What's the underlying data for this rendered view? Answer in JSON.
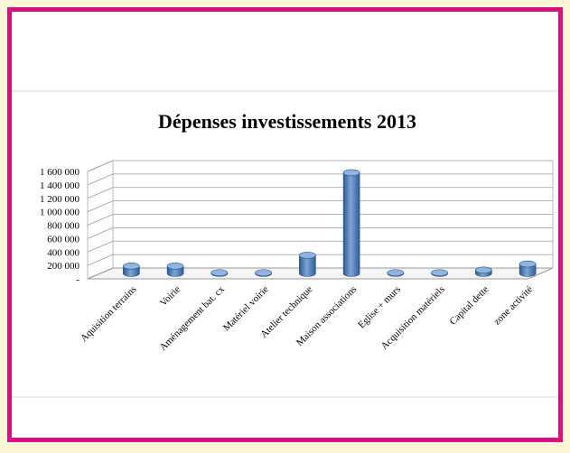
{
  "chart_data": {
    "type": "bar3d",
    "title": "Dépenses investissements 2013",
    "categories": [
      "Aquisition terrains",
      "Voirie",
      "Aménagement bat. cx",
      "Matériel voirie",
      "Atelier technique",
      "Maison associations",
      "Eglise + murs",
      "Acquisition matériels",
      "Capital dette",
      "zone activité"
    ],
    "values": [
      110000,
      110000,
      10000,
      10000,
      270000,
      1500000,
      10000,
      10000,
      50000,
      140000
    ],
    "color": "#4f81bd",
    "ylim": [
      0,
      1600000
    ],
    "yticks": [
      {
        "value": 0,
        "label": "-"
      },
      {
        "value": 200000,
        "label": "200 000"
      },
      {
        "value": 400000,
        "label": "400 000"
      },
      {
        "value": 600000,
        "label": "600 000"
      },
      {
        "value": 800000,
        "label": "800 000"
      },
      {
        "value": 1000000,
        "label": "1 000 000"
      },
      {
        "value": 1200000,
        "label": "1 200 000"
      },
      {
        "value": 1400000,
        "label": "1 400 000"
      },
      {
        "value": 1600000,
        "label": "1 600 000"
      }
    ],
    "grid": true
  }
}
